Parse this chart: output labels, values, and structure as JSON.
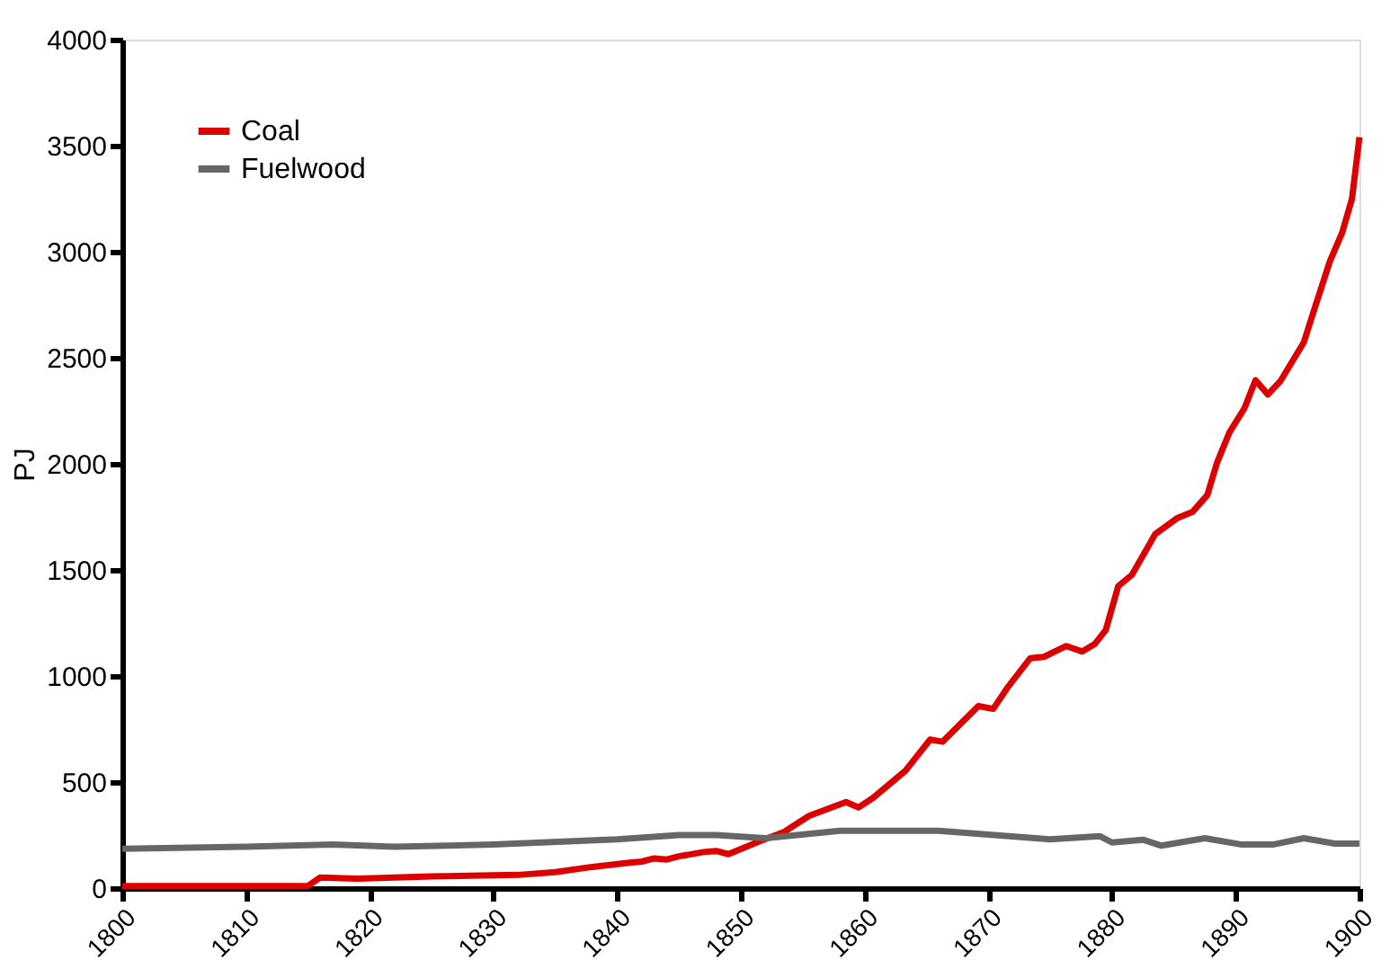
{
  "chart_data": {
    "type": "line",
    "ylabel": "PJ",
    "xlim": [
      1800,
      1900
    ],
    "xticks": [
      1800,
      1810,
      1820,
      1830,
      1840,
      1850,
      1860,
      1870,
      1880,
      1890,
      1900
    ],
    "ylim": [
      0,
      4000
    ],
    "yticks": [
      0,
      500,
      1000,
      1500,
      2000,
      2500,
      3000,
      3500,
      4000
    ],
    "grid": false,
    "legend": "top left",
    "marker": "none",
    "line_style": "solid",
    "series": [
      {
        "name": "Coal",
        "color": "#dd0000",
        "x": [
          1800,
          1815,
          1816,
          1819,
          1825,
          1830,
          1832,
          1835,
          1838,
          1841,
          1842,
          1843,
          1844,
          1845,
          1847,
          1848,
          1849,
          1851.5,
          1853.5,
          1855.5,
          1858.5,
          1859.5,
          1860.7,
          1863.3,
          1865.3,
          1866.3,
          1869.2,
          1870.4,
          1871.6,
          1873.4,
          1874.5,
          1876.3,
          1877.6,
          1878.6,
          1879.5,
          1880.5,
          1881.6,
          1883.5,
          1885.3,
          1886.5,
          1887.7,
          1888.5,
          1889.5,
          1890.7,
          1891.6,
          1892.6,
          1893.6,
          1895.5,
          1896.5,
          1897.6,
          1898.6,
          1899.4,
          1900
        ],
        "values": [
          10,
          10,
          50,
          45,
          55,
          60,
          62,
          75,
          100,
          120,
          125,
          140,
          135,
          150,
          170,
          175,
          160,
          220,
          265,
          340,
          406,
          380,
          426,
          553,
          700,
          690,
          858,
          845,
          949,
          1084,
          1090,
          1141,
          1115,
          1150,
          1217,
          1423,
          1476,
          1669,
          1745,
          1773,
          1852,
          2007,
          2149,
          2261,
          2394,
          2327,
          2389,
          2572,
          2755,
          2953,
          3089,
          3250,
          3540
        ]
      },
      {
        "name": "Fuelwood",
        "color": "#666666",
        "x": [
          1800,
          1810,
          1817,
          1822,
          1830,
          1840,
          1845,
          1848,
          1852,
          1858,
          1866,
          1875,
          1879,
          1880,
          1882.5,
          1884,
          1887.5,
          1890.5,
          1893,
          1895.5,
          1898,
          1900
        ],
        "values": [
          185,
          195,
          205,
          195,
          205,
          230,
          250,
          250,
          235,
          270,
          270,
          230,
          245,
          215,
          228,
          200,
          235,
          205,
          205,
          235,
          210,
          210
        ]
      }
    ]
  }
}
